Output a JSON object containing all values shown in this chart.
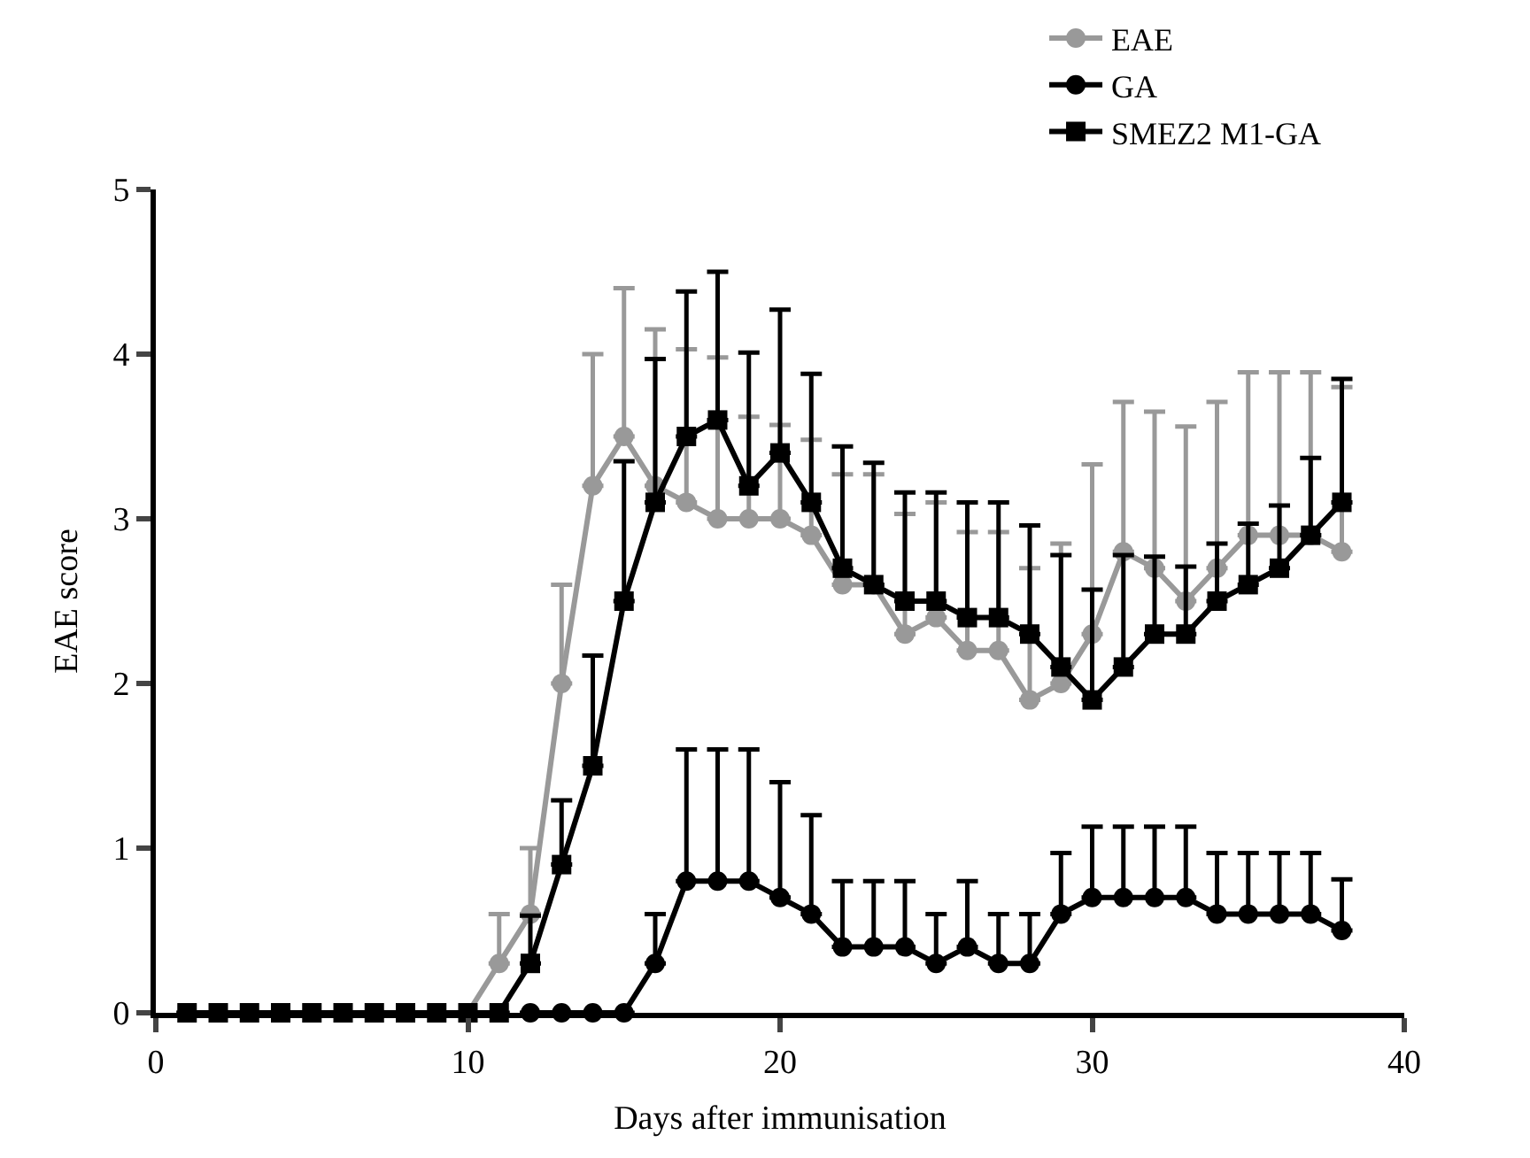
{
  "chart_data": {
    "type": "line",
    "xlabel": "Days after immunisation",
    "ylabel": "EAE score",
    "xlim": [
      0,
      40
    ],
    "xticks": [
      0,
      10,
      20,
      30,
      40
    ],
    "ylim": [
      0,
      5
    ],
    "yticks": [
      0,
      1,
      2,
      3,
      4,
      5
    ],
    "legend": "top right",
    "line_style": "solid",
    "x": [
      1,
      2,
      3,
      4,
      5,
      6,
      7,
      8,
      9,
      10,
      11,
      12,
      13,
      14,
      15,
      16,
      17,
      18,
      19,
      20,
      21,
      22,
      23,
      24,
      25,
      26,
      27,
      28,
      29,
      30,
      31,
      32,
      33,
      34,
      35,
      36,
      37,
      38
    ],
    "series": [
      {
        "name": "EAE",
        "color": "#999999",
        "marker": "circle",
        "values": [
          0,
          0,
          0,
          0,
          0,
          0,
          0,
          0,
          0,
          0,
          0.3,
          0.6,
          2.0,
          3.2,
          3.5,
          3.2,
          3.1,
          3.0,
          3.0,
          3.0,
          2.9,
          2.6,
          2.6,
          2.3,
          2.4,
          2.2,
          2.2,
          1.9,
          2.0,
          2.3,
          2.8,
          2.7,
          2.5,
          2.7,
          2.9,
          2.9,
          2.9,
          2.8
        ],
        "errors": [
          null,
          null,
          null,
          null,
          null,
          null,
          null,
          null,
          null,
          null,
          [
            0.3,
            0.6
          ],
          [
            0.6,
            1.0
          ],
          [
            2.0,
            2.6
          ],
          [
            3.2,
            4.0
          ],
          [
            3.5,
            4.4
          ],
          [
            3.2,
            4.15
          ],
          [
            3.1,
            4.03
          ],
          [
            3.0,
            3.98
          ],
          [
            3.0,
            3.62
          ],
          [
            3.0,
            3.57
          ],
          [
            2.9,
            3.48
          ],
          [
            2.6,
            3.27
          ],
          [
            2.6,
            3.27
          ],
          [
            2.3,
            3.03
          ],
          [
            2.4,
            3.1
          ],
          [
            2.2,
            2.92
          ],
          [
            2.2,
            2.92
          ],
          [
            1.9,
            2.7
          ],
          [
            2.0,
            2.85
          ],
          [
            2.3,
            3.33
          ],
          [
            2.8,
            3.71
          ],
          [
            2.7,
            3.65
          ],
          [
            2.5,
            3.56
          ],
          [
            2.7,
            3.71
          ],
          [
            2.9,
            3.89
          ],
          [
            2.9,
            3.89
          ],
          [
            2.9,
            3.89
          ],
          [
            2.8,
            3.8
          ]
        ]
      },
      {
        "name": "GA",
        "color": "#000000",
        "marker": "circle",
        "values": [
          null,
          null,
          null,
          null,
          null,
          null,
          null,
          null,
          null,
          null,
          null,
          0,
          0,
          0,
          0,
          0.3,
          0.8,
          0.8,
          0.8,
          0.7,
          0.6,
          0.4,
          0.4,
          0.4,
          0.3,
          0.4,
          0.3,
          0.3,
          0.6,
          0.7,
          0.7,
          0.7,
          0.7,
          0.6,
          0.6,
          0.6,
          0.6,
          0.5
        ],
        "errors": [
          null,
          null,
          null,
          null,
          null,
          null,
          null,
          null,
          null,
          null,
          null,
          null,
          null,
          null,
          null,
          [
            0.3,
            0.6
          ],
          [
            0.8,
            1.6
          ],
          [
            0.8,
            1.6
          ],
          [
            0.8,
            1.6
          ],
          [
            0.7,
            1.4
          ],
          [
            0.6,
            1.2
          ],
          [
            0.4,
            0.8
          ],
          [
            0.4,
            0.8
          ],
          [
            0.4,
            0.8
          ],
          [
            0.3,
            0.6
          ],
          [
            0.4,
            0.8
          ],
          [
            0.3,
            0.6
          ],
          [
            0.3,
            0.6
          ],
          [
            0.6,
            0.97
          ],
          [
            0.7,
            1.13
          ],
          [
            0.7,
            1.13
          ],
          [
            0.7,
            1.13
          ],
          [
            0.7,
            1.13
          ],
          [
            0.6,
            0.97
          ],
          [
            0.6,
            0.97
          ],
          [
            0.6,
            0.97
          ],
          [
            0.6,
            0.97
          ],
          [
            0.5,
            0.81
          ]
        ]
      },
      {
        "name": "SMEZ2 M1-GA",
        "color": "#000000",
        "marker": "square",
        "values": [
          0,
          0,
          0,
          0,
          0,
          0,
          0,
          0,
          0,
          0,
          0,
          0.3,
          0.9,
          1.5,
          2.5,
          3.1,
          3.5,
          3.6,
          3.2,
          3.4,
          3.1,
          2.7,
          2.6,
          2.5,
          2.5,
          2.4,
          2.4,
          2.3,
          2.1,
          1.9,
          2.1,
          2.3,
          2.3,
          2.5,
          2.6,
          2.7,
          2.9,
          3.1
        ],
        "errors": [
          null,
          null,
          null,
          null,
          null,
          null,
          null,
          null,
          null,
          null,
          null,
          [
            0.3,
            0.59
          ],
          [
            0.9,
            1.29
          ],
          [
            1.5,
            2.17
          ],
          [
            2.5,
            3.35
          ],
          [
            3.1,
            3.97
          ],
          [
            3.5,
            4.38
          ],
          [
            3.6,
            4.5
          ],
          [
            3.2,
            4.01
          ],
          [
            3.4,
            4.27
          ],
          [
            3.1,
            3.88
          ],
          [
            2.7,
            3.44
          ],
          [
            2.6,
            3.34
          ],
          [
            2.5,
            3.16
          ],
          [
            2.5,
            3.16
          ],
          [
            2.4,
            3.1
          ],
          [
            2.4,
            3.1
          ],
          [
            2.3,
            2.96
          ],
          [
            2.1,
            2.78
          ],
          [
            1.9,
            2.57
          ],
          [
            2.1,
            2.78
          ],
          [
            2.3,
            2.77
          ],
          [
            2.3,
            2.71
          ],
          [
            2.5,
            2.85
          ],
          [
            2.6,
            2.97
          ],
          [
            2.7,
            3.08
          ],
          [
            2.9,
            3.37
          ],
          [
            3.1,
            3.85
          ]
        ]
      }
    ]
  }
}
